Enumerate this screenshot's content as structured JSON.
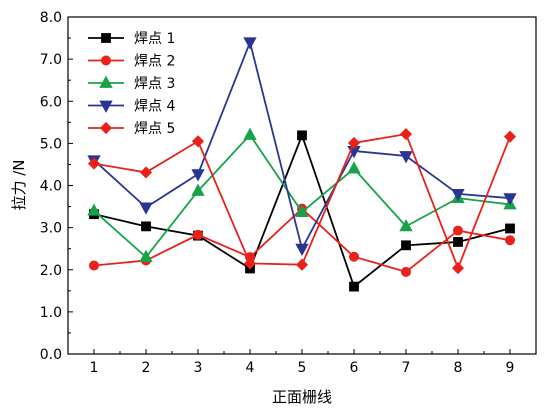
{
  "chart_data": {
    "type": "line",
    "xlabel": "正面栅线",
    "ylabel": "拉力 /N",
    "x": [
      1,
      2,
      3,
      4,
      5,
      6,
      7,
      8,
      9
    ],
    "xlim": [
      0.5,
      9.5
    ],
    "ylim": [
      0.0,
      8.0
    ],
    "ytick_labels": [
      "0.0",
      "1.0",
      "2.0",
      "3.0",
      "4.0",
      "5.0",
      "6.0",
      "7.0",
      "8.0"
    ],
    "xtick_labels": [
      "1",
      "2",
      "3",
      "4",
      "5",
      "6",
      "7",
      "8",
      "9"
    ],
    "grid": false,
    "legend_position": "top-left",
    "series": [
      {
        "name": "焊点 1",
        "color": "#000000",
        "marker": "square",
        "values": [
          3.32,
          3.03,
          2.81,
          2.03,
          5.19,
          1.6,
          2.58,
          2.66,
          2.98
        ]
      },
      {
        "name": "焊点 2",
        "color": "#e8221b",
        "marker": "circle",
        "values": [
          2.1,
          2.22,
          2.83,
          2.3,
          3.45,
          2.31,
          1.95,
          2.93,
          2.7
        ]
      },
      {
        "name": "焊点 3",
        "color": "#17a34a",
        "marker": "triangle-up",
        "values": [
          3.4,
          2.3,
          3.87,
          5.2,
          3.37,
          4.4,
          3.03,
          3.7,
          3.55
        ]
      },
      {
        "name": "焊点 4",
        "color": "#283593",
        "marker": "triangle-down",
        "values": [
          4.6,
          3.48,
          4.27,
          7.4,
          2.5,
          4.82,
          4.7,
          3.8,
          3.7
        ]
      },
      {
        "name": "焊点 5",
        "color": "#e8221b",
        "marker": "diamond",
        "values": [
          4.52,
          4.31,
          5.05,
          2.15,
          2.12,
          5.01,
          5.22,
          2.04,
          5.16
        ]
      }
    ]
  }
}
